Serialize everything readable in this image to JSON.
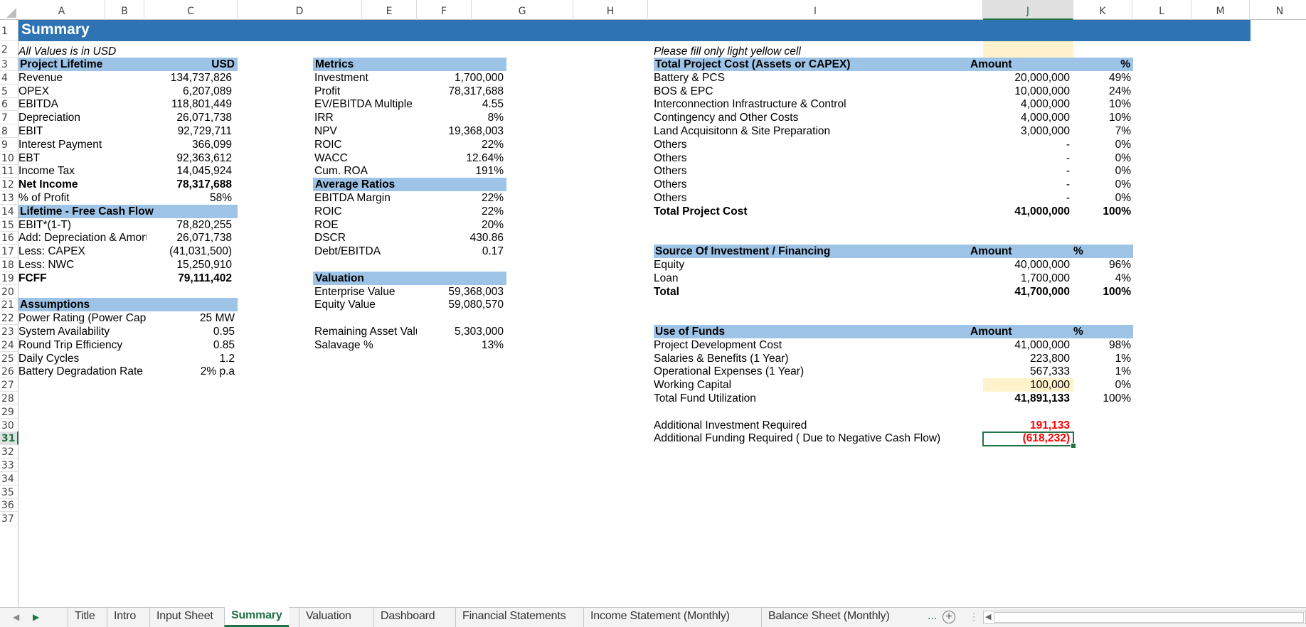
{
  "columns": [
    "A",
    "B",
    "C",
    "D",
    "E",
    "F",
    "G",
    "H",
    "I",
    "J",
    "K",
    "L",
    "M",
    "N"
  ],
  "selected_column": "J",
  "selected_row": 31,
  "rows_visible": [
    1,
    2,
    3,
    4,
    5,
    6,
    7,
    8,
    9,
    10,
    11,
    12,
    13,
    14,
    15,
    16,
    17,
    18,
    19,
    20,
    21,
    22,
    23,
    24,
    25,
    26,
    27,
    28,
    29,
    30,
    31,
    32,
    33,
    34,
    35,
    36,
    37
  ],
  "title": "Summary",
  "note_usd": "All Values is in USD",
  "note_fill": "Please fill only light yellow cell",
  "project_lifetime": {
    "header": "Project Lifetime",
    "currency": "USD",
    "rows": [
      {
        "label": "Revenue",
        "value": "134,737,826",
        "bold": false
      },
      {
        "label": "OPEX",
        "value": "6,207,089",
        "bold": false
      },
      {
        "label": "EBITDA",
        "value": "118,801,449",
        "bold": false
      },
      {
        "label": "Depreciation",
        "value": "26,071,738",
        "bold": false
      },
      {
        "label": "EBIT",
        "value": "92,729,711",
        "bold": false
      },
      {
        "label": "Interest Payment",
        "value": "366,099",
        "bold": false
      },
      {
        "label": "EBT",
        "value": "92,363,612",
        "bold": false
      },
      {
        "label": "Income Tax",
        "value": "14,045,924",
        "bold": false
      },
      {
        "label": "Net Income",
        "value": "78,317,688",
        "bold": true
      },
      {
        "label": "% of Profit",
        "value": "58%",
        "bold": false
      }
    ]
  },
  "free_cash_flow": {
    "header": "Lifetime - Free Cash Flow",
    "rows": [
      {
        "label": "EBIT*(1-T)",
        "value": "78,820,255"
      },
      {
        "label": "Add: Depreciation & Amortiz",
        "value": "26,071,738"
      },
      {
        "label": "Less: CAPEX",
        "value": "(41,031,500)"
      },
      {
        "label": "Less: NWC",
        "value": "15,250,910"
      },
      {
        "label": "FCFF",
        "value": "79,111,402"
      }
    ]
  },
  "assumptions": {
    "header": "Assumptions",
    "rows": [
      {
        "label": "Power Rating (Power Capac",
        "value": "25 MW"
      },
      {
        "label": "System Availability",
        "value": "0.95"
      },
      {
        "label": "Round Trip Efficiency",
        "value": "0.85"
      },
      {
        "label": "Daily Cycles",
        "value": "1.2"
      },
      {
        "label": "Battery Degradation Rate",
        "value": "2% p.a"
      }
    ]
  },
  "metrics": {
    "header": "Metrics",
    "rows": [
      {
        "label": "Investment",
        "value": "1,700,000"
      },
      {
        "label": "Profit",
        "value": "78,317,688"
      },
      {
        "label": "EV/EBITDA Multiple",
        "value": "4.55"
      },
      {
        "label": "IRR",
        "value": "8%"
      },
      {
        "label": "NPV",
        "value": "19,368,003"
      },
      {
        "label": "ROIC",
        "value": "22%"
      },
      {
        "label": "WACC",
        "value": "12.64%"
      },
      {
        "label": "Cum. ROA",
        "value": "191%"
      }
    ]
  },
  "average_ratios": {
    "header": "Average Ratios",
    "rows": [
      {
        "label": "EBITDA Margin",
        "value": "22%"
      },
      {
        "label": "ROIC",
        "value": "22%"
      },
      {
        "label": "ROE",
        "value": "20%"
      },
      {
        "label": "DSCR",
        "value": "430.86"
      },
      {
        "label": "Debt/EBITDA",
        "value": "0.17"
      }
    ]
  },
  "valuation": {
    "header": "Valuation",
    "rows": [
      {
        "label": "Enterprise Value",
        "value": "59,368,003"
      },
      {
        "label": "Equity Value",
        "value": "59,080,570"
      }
    ],
    "extra": [
      {
        "label": "Remaining Asset Valu",
        "value": "5,303,000"
      },
      {
        "label": "Salavage %",
        "value": "13%"
      }
    ]
  },
  "project_cost": {
    "header": "Total Project Cost (Assets or CAPEX)",
    "amount_header": "Amount",
    "pct_header": "%",
    "rows": [
      {
        "label": "Battery & PCS",
        "amount": "20,000,000",
        "pct": "49%"
      },
      {
        "label": "BOS & EPC",
        "amount": "10,000,000",
        "pct": "24%"
      },
      {
        "label": "Interconnection Infrastructure & Control",
        "amount": "4,000,000",
        "pct": "10%"
      },
      {
        "label": "Contingency and Other Costs",
        "amount": "4,000,000",
        "pct": "10%"
      },
      {
        "label": "Land Acquisitonn & Site Preparation",
        "amount": "3,000,000",
        "pct": "7%"
      },
      {
        "label": "Others",
        "amount": "-",
        "pct": "0%"
      },
      {
        "label": "Others",
        "amount": "-",
        "pct": "0%"
      },
      {
        "label": "Others",
        "amount": "-",
        "pct": "0%"
      },
      {
        "label": "Others",
        "amount": "-",
        "pct": "0%"
      },
      {
        "label": "Others",
        "amount": "-",
        "pct": "0%"
      }
    ],
    "total": {
      "label": "Total Project Cost",
      "amount": "41,000,000",
      "pct": "100%"
    }
  },
  "financing": {
    "header": "Source Of Investment / Financing",
    "amount_header": "Amount",
    "pct_header": "%",
    "rows": [
      {
        "label": "Equity",
        "amount": "40,000,000",
        "pct": "96%"
      },
      {
        "label": "Loan",
        "amount": "1,700,000",
        "pct": "4%"
      }
    ],
    "total": {
      "label": "Total",
      "amount": "41,700,000",
      "pct": "100%"
    }
  },
  "use_of_funds": {
    "header": "Use of Funds",
    "amount_header": "Amount",
    "pct_header": "%",
    "rows": [
      {
        "label": "Project Development Cost",
        "amount": "41,000,000",
        "pct": "98%"
      },
      {
        "label": "Salaries & Benefits (1 Year)",
        "amount": "223,800",
        "pct": "1%"
      },
      {
        "label": "Operational Expenses (1 Year)",
        "amount": "567,333",
        "pct": "1%"
      },
      {
        "label": "Working Capital",
        "amount": "100,000",
        "pct": "0%"
      }
    ],
    "total": {
      "label": "Total Fund Utilization",
      "amount": "41,891,133",
      "pct": "100%"
    }
  },
  "additional": [
    {
      "label": "Additional Investment Required",
      "value": "191,133"
    },
    {
      "label": "Additional Funding Required ( Due to Negative Cash Flow)",
      "value": "(618,232)"
    }
  ],
  "colors": {
    "title_band": "#2e74b5",
    "section_header": "#9dc3e6",
    "input_yellow": "#fff2cc",
    "accent_green": "#217346",
    "negative_red": "#ff0000"
  },
  "sheet_tabs": {
    "tabs": [
      "Title",
      "Intro",
      "Input Sheet",
      "Summary",
      "Valuation",
      "Dashboard",
      "Financial Statements",
      "Income Statement (Monthly)",
      "Balance Sheet (Monthly)"
    ],
    "active": "Summary",
    "more": "...",
    "add": "+"
  }
}
